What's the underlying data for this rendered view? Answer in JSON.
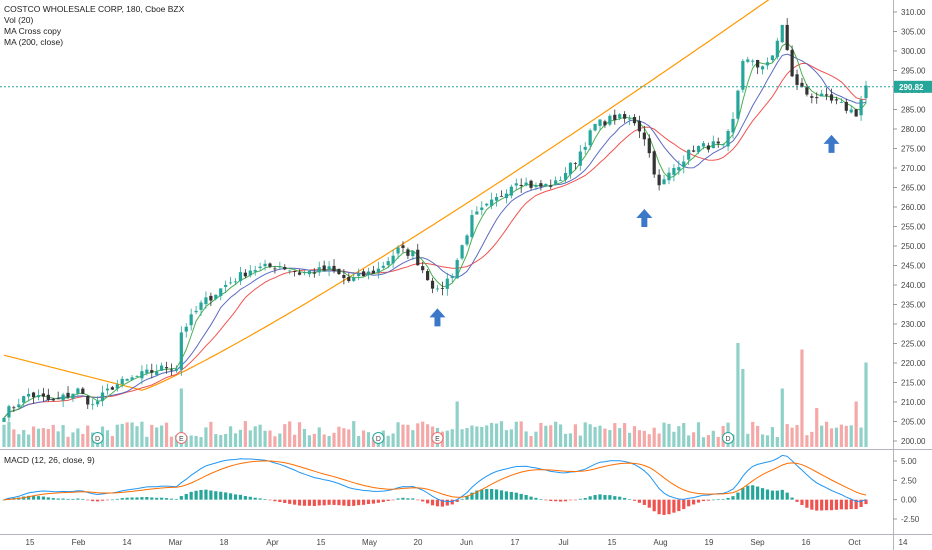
{
  "legend": {
    "title": "COSTCO WHOLESALE CORP, 180, Cboe BZX",
    "vol": "Vol (20)",
    "ma_cross": "MA Cross copy",
    "ma200": "MA (200, close)",
    "macd": "MACD (12, 26, close, 9)"
  },
  "price_badge": "290.82",
  "colors": {
    "up": "#26a69a",
    "down": "#333333",
    "ma_fast": "#4caf50",
    "ma_slow": "#ef5350",
    "ma_mid": "#5c6bc0",
    "ma200": "#ff9800",
    "macd_line": "#2196f3",
    "signal_line": "#ff6d00",
    "vol_up": "#8fd1c8",
    "vol_down": "#f4a9a8",
    "arrow": "#3b78c8"
  },
  "chart_data": {
    "type": "candlestick",
    "price_axis": {
      "min": 195,
      "max": 312,
      "ticks": [
        "310.00",
        "305.00",
        "300.00",
        "295.00",
        "290.00",
        "285.00",
        "280.00",
        "275.00",
        "270.00",
        "265.00",
        "260.00",
        "255.00",
        "250.00",
        "245.00",
        "240.00",
        "235.00",
        "230.00",
        "225.00",
        "220.00",
        "215.00",
        "210.00",
        "205.00",
        "200.00"
      ]
    },
    "macd_axis": {
      "min": -3.8,
      "max": 6.2,
      "ticks": [
        "5.00",
        "2.50",
        "0.00",
        "-2.50"
      ]
    },
    "x_labels": [
      "15",
      "Feb",
      "14",
      "Mar",
      "18",
      "Apr",
      "15",
      "May",
      "20",
      "Jun",
      "17",
      "Jul",
      "15",
      "Aug",
      "19",
      "Sep",
      "16",
      "Oct",
      "14"
    ],
    "close_anchors": [
      {
        "t": 0,
        "p": 207
      },
      {
        "t": 5,
        "p": 212
      },
      {
        "t": 10,
        "p": 210
      },
      {
        "t": 15,
        "p": 213
      },
      {
        "t": 18,
        "p": 209
      },
      {
        "t": 22,
        "p": 214
      },
      {
        "t": 28,
        "p": 217
      },
      {
        "t": 33,
        "p": 219
      },
      {
        "t": 35,
        "p": 219
      },
      {
        "t": 36,
        "p": 228
      },
      {
        "t": 40,
        "p": 235
      },
      {
        "t": 45,
        "p": 240
      },
      {
        "t": 50,
        "p": 244
      },
      {
        "t": 56,
        "p": 245
      },
      {
        "t": 60,
        "p": 243
      },
      {
        "t": 66,
        "p": 244
      },
      {
        "t": 70,
        "p": 241
      },
      {
        "t": 76,
        "p": 244
      },
      {
        "t": 80,
        "p": 249
      },
      {
        "t": 83,
        "p": 248
      },
      {
        "t": 86,
        "p": 242
      },
      {
        "t": 88,
        "p": 238
      },
      {
        "t": 91,
        "p": 243
      },
      {
        "t": 95,
        "p": 257
      },
      {
        "t": 100,
        "p": 262
      },
      {
        "t": 104,
        "p": 267
      },
      {
        "t": 108,
        "p": 265
      },
      {
        "t": 112,
        "p": 266
      },
      {
        "t": 116,
        "p": 272
      },
      {
        "t": 120,
        "p": 281
      },
      {
        "t": 124,
        "p": 283
      },
      {
        "t": 128,
        "p": 282
      },
      {
        "t": 130,
        "p": 278
      },
      {
        "t": 133,
        "p": 265
      },
      {
        "t": 136,
        "p": 270
      },
      {
        "t": 140,
        "p": 275
      },
      {
        "t": 144,
        "p": 276
      },
      {
        "t": 146,
        "p": 275
      },
      {
        "t": 148,
        "p": 282
      },
      {
        "t": 150,
        "p": 298
      },
      {
        "t": 153,
        "p": 296
      },
      {
        "t": 156,
        "p": 298
      },
      {
        "t": 158,
        "p": 307
      },
      {
        "t": 160,
        "p": 293
      },
      {
        "t": 163,
        "p": 289
      },
      {
        "t": 166,
        "p": 288
      },
      {
        "t": 170,
        "p": 286
      },
      {
        "t": 173,
        "p": 284
      },
      {
        "t": 175,
        "p": 291
      }
    ],
    "volume_spikes": [
      {
        "t": 36,
        "v": 9
      },
      {
        "t": 92,
        "v": 7
      },
      {
        "t": 149,
        "v": 16
      },
      {
        "t": 150,
        "v": 12
      },
      {
        "t": 158,
        "v": 9
      },
      {
        "t": 162,
        "v": 15
      },
      {
        "t": 165,
        "v": 6
      },
      {
        "t": 173,
        "v": 7
      },
      {
        "t": 175,
        "v": 13
      }
    ],
    "events": [
      {
        "t": 19,
        "label": "D",
        "kind": "dividend"
      },
      {
        "t": 36,
        "label": "E",
        "kind": "earnings"
      },
      {
        "t": 76,
        "label": "D",
        "kind": "dividend"
      },
      {
        "t": 88,
        "label": "E",
        "kind": "earnings"
      },
      {
        "t": 147,
        "label": "D",
        "kind": "dividend"
      }
    ],
    "arrows": [
      {
        "t": 88
      },
      {
        "t": 130
      },
      {
        "t": 168
      }
    ]
  }
}
